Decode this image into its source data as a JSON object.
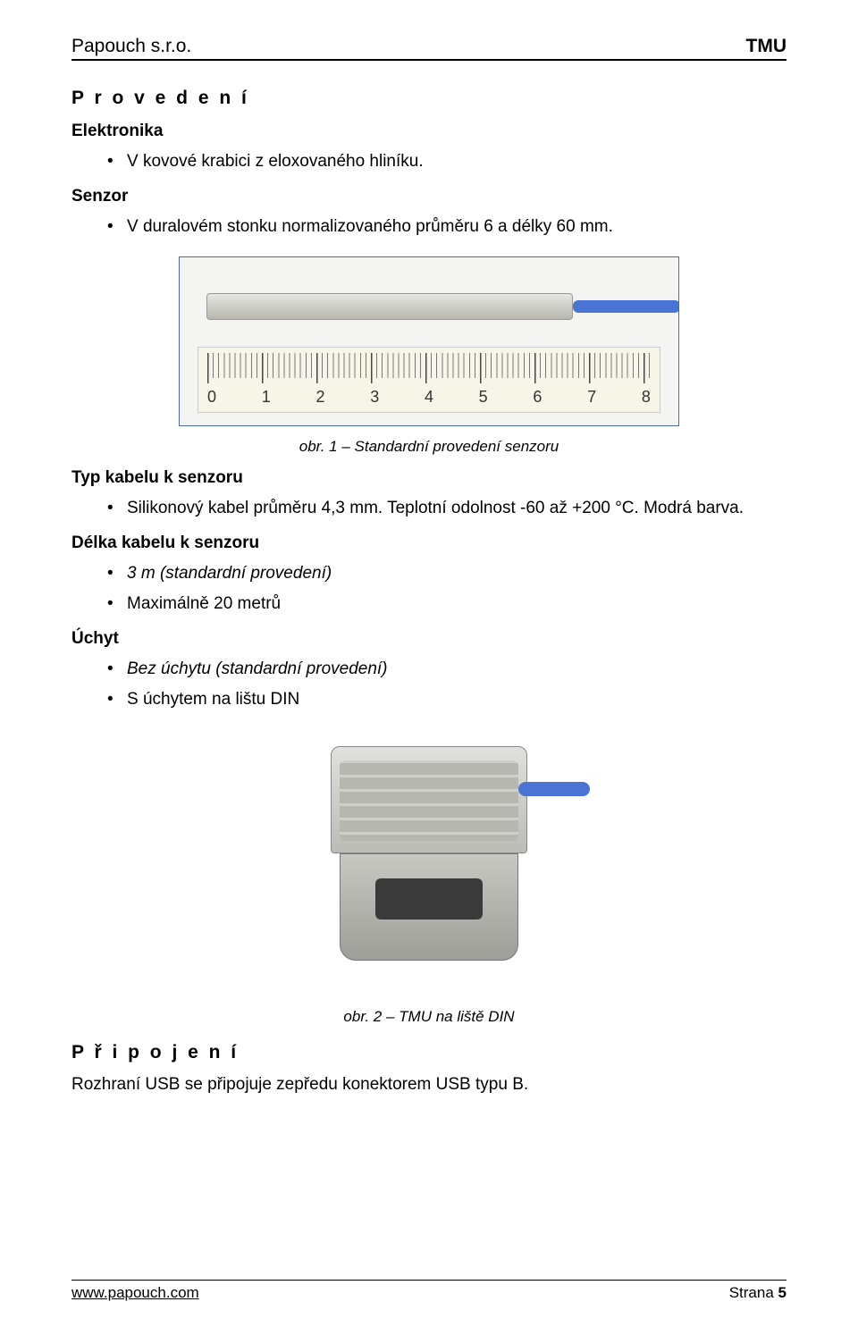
{
  "header": {
    "company": "Papouch s.r.o.",
    "product": "TMU"
  },
  "section_provedeni": "P r o v e d e n í",
  "elektronika": {
    "heading": "Elektronika",
    "items": [
      "V kovové krabici z eloxovaného hliníku."
    ]
  },
  "senzor": {
    "heading": "Senzor",
    "items": [
      "V duralovém stonku normalizovaného průměru 6 a délky 60 mm."
    ]
  },
  "fig1": {
    "caption": "obr. 1 – Standardní provedení senzoru",
    "ruler_labels": [
      "0",
      "1",
      "2",
      "3",
      "4",
      "5",
      "6",
      "7",
      "8"
    ],
    "border_color": "#4a6aa8",
    "cable_color": "#4a74d4"
  },
  "typ_kabelu": {
    "heading": "Typ kabelu k senzoru",
    "items": [
      "Silikonový kabel průměru 4,3 mm. Teplotní odolnost -60 až +200 °C. Modrá barva."
    ]
  },
  "delka_kabelu": {
    "heading": "Délka kabelu k senzoru",
    "items": [
      "3 m (standardní provedení)",
      "Maximálně 20 metrů"
    ]
  },
  "uchyt": {
    "heading": "Úchyt",
    "items": [
      "Bez úchytu (standardní provedení)",
      "S úchytem na lištu DIN"
    ]
  },
  "fig2": {
    "caption": "obr. 2 – TMU na liště DIN",
    "cable_color": "#4a74d4"
  },
  "section_pripojeni": "P ř i p o j e n í",
  "pripojeni_text": "Rozhraní USB se připojuje zepředu konektorem USB typu B.",
  "footer": {
    "url_text": "www.papouch.com",
    "url_href": "http://www.papouch.com",
    "page_label": "Strana",
    "page_number": "5"
  },
  "italic_indices": {
    "delka_kabelu": [
      0
    ],
    "uchyt": [
      0
    ]
  }
}
